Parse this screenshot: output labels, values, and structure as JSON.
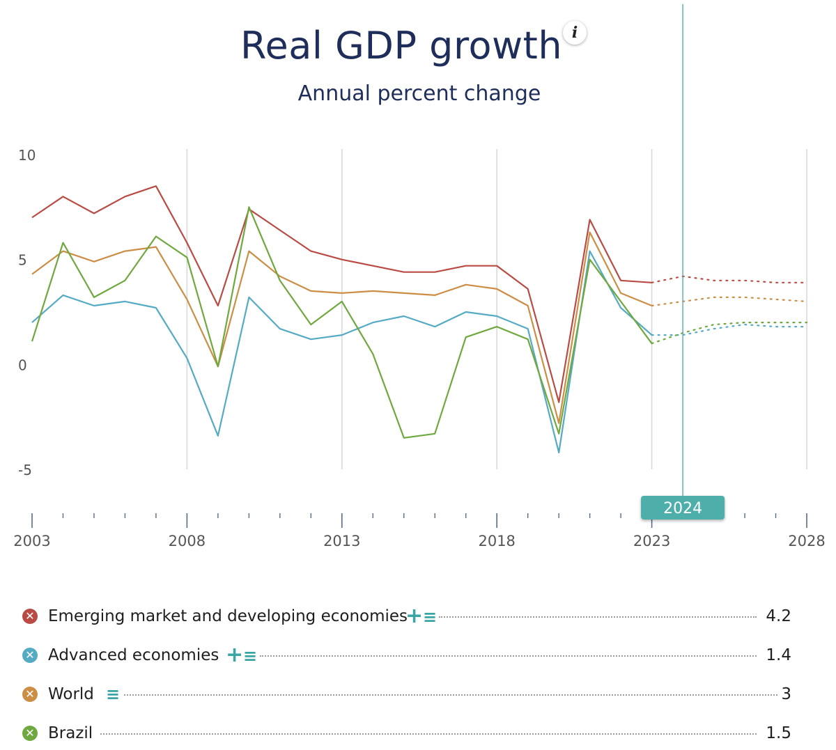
{
  "header": {
    "title": "Real GDP growth",
    "subtitle": "Annual percent change",
    "info_icon": "i"
  },
  "chart_data": {
    "type": "line",
    "title": "Real GDP growth",
    "subtitle": "Annual percent change",
    "ylim": [
      -5,
      10
    ],
    "y_ticks": [
      "10",
      "5",
      "0",
      "-5"
    ],
    "x_range": [
      2003,
      2028
    ],
    "x_tick_labels": [
      "2003",
      "2008",
      "2013",
      "2018",
      "2023",
      "2028"
    ],
    "selected_year": "2024",
    "projection_start": 2023,
    "colors": {
      "emerging": "#b94b44",
      "advanced": "#55aac4",
      "world": "#cc8d45",
      "brazil": "#6fa83e",
      "accent": "#4eaeaa"
    },
    "series": [
      {
        "name": "Emerging market and developing economies",
        "color": "#b94b44",
        "x": [
          2003,
          2004,
          2005,
          2006,
          2007,
          2008,
          2009,
          2010,
          2011,
          2012,
          2013,
          2014,
          2015,
          2016,
          2017,
          2018,
          2019,
          2020,
          2021,
          2022,
          2023,
          2024,
          2025,
          2026,
          2027,
          2028
        ],
        "values": [
          7.0,
          8.0,
          7.2,
          8.0,
          8.5,
          5.8,
          2.8,
          7.4,
          6.4,
          5.4,
          5.0,
          4.7,
          4.4,
          4.4,
          4.7,
          4.7,
          3.6,
          -1.8,
          6.9,
          4.0,
          3.9,
          4.2,
          4.0,
          4.0,
          3.9,
          3.9
        ]
      },
      {
        "name": "Advanced economies",
        "color": "#55aac4",
        "x": [
          2003,
          2004,
          2005,
          2006,
          2007,
          2008,
          2009,
          2010,
          2011,
          2012,
          2013,
          2014,
          2015,
          2016,
          2017,
          2018,
          2019,
          2020,
          2021,
          2022,
          2023,
          2024,
          2025,
          2026,
          2027,
          2028
        ],
        "values": [
          2.0,
          3.3,
          2.8,
          3.0,
          2.7,
          0.3,
          -3.4,
          3.2,
          1.7,
          1.2,
          1.4,
          2.0,
          2.3,
          1.8,
          2.5,
          2.3,
          1.7,
          -4.2,
          5.4,
          2.7,
          1.4,
          1.4,
          1.7,
          1.9,
          1.8,
          1.8
        ]
      },
      {
        "name": "World",
        "color": "#cc8d45",
        "x": [
          2003,
          2004,
          2005,
          2006,
          2007,
          2008,
          2009,
          2010,
          2011,
          2012,
          2013,
          2014,
          2015,
          2016,
          2017,
          2018,
          2019,
          2020,
          2021,
          2022,
          2023,
          2024,
          2025,
          2026,
          2027,
          2028
        ],
        "values": [
          4.3,
          5.4,
          4.9,
          5.4,
          5.6,
          3.1,
          -0.1,
          5.4,
          4.2,
          3.5,
          3.4,
          3.5,
          3.4,
          3.3,
          3.8,
          3.6,
          2.8,
          -2.8,
          6.3,
          3.4,
          2.8,
          3.0,
          3.2,
          3.2,
          3.1,
          3.0
        ]
      },
      {
        "name": "Brazil",
        "color": "#6fa83e",
        "x": [
          2003,
          2004,
          2005,
          2006,
          2007,
          2008,
          2009,
          2010,
          2011,
          2012,
          2013,
          2014,
          2015,
          2016,
          2017,
          2018,
          2019,
          2020,
          2021,
          2022,
          2023,
          2024,
          2025,
          2026,
          2027,
          2028
        ],
        "values": [
          1.1,
          5.8,
          3.2,
          4.0,
          6.1,
          5.1,
          -0.1,
          7.5,
          4.0,
          1.9,
          3.0,
          0.5,
          -3.5,
          -3.3,
          1.3,
          1.8,
          1.2,
          -3.3,
          5.0,
          3.0,
          1.0,
          1.5,
          1.9,
          2.0,
          2.0,
          2.0
        ]
      }
    ]
  },
  "legend": {
    "items": [
      {
        "label": "Emerging market and developing economies",
        "value": "4.2",
        "color": "#b94b44",
        "remove_icon": "✕",
        "plus_icon": "+",
        "list_icon": "≡"
      },
      {
        "label": "Advanced economies",
        "value": "1.4",
        "color": "#55aac4",
        "remove_icon": "✕",
        "plus_icon": "+",
        "list_icon": "≡"
      },
      {
        "label": "World",
        "value": "3",
        "color": "#cc8d45",
        "remove_icon": "✕",
        "list_icon": "≡"
      },
      {
        "label": "Brazil",
        "value": "1.5",
        "color": "#6fa83e",
        "remove_icon": "✕"
      }
    ]
  }
}
